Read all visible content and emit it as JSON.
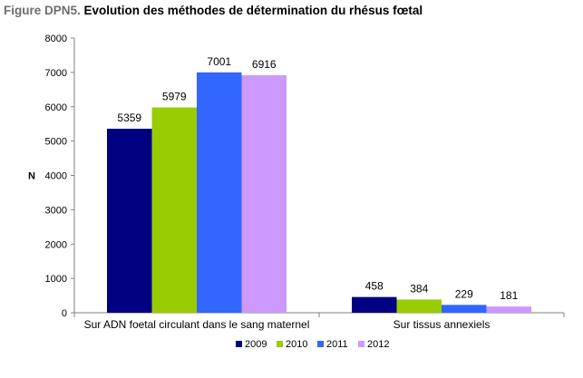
{
  "figure": {
    "prefix": "Figure DPN5.",
    "title": "Evolution des méthodes de détermination du rhésus fœtal"
  },
  "chart_data": {
    "type": "bar",
    "title": "Evolution des méthodes de détermination du rhésus fœtal",
    "xlabel": "",
    "ylabel": "N",
    "ylim": [
      0,
      8000
    ],
    "yticks": [
      0,
      1000,
      2000,
      3000,
      4000,
      5000,
      6000,
      7000,
      8000
    ],
    "grid": false,
    "legend_position": "bottom",
    "categories": [
      "Sur ADN foetal circulant dans le sang maternel",
      "Sur tissus annexiels"
    ],
    "series": [
      {
        "name": "2009",
        "color": "#000080",
        "values": [
          5359,
          458
        ]
      },
      {
        "name": "2010",
        "color": "#99cc00",
        "values": [
          5979,
          384
        ]
      },
      {
        "name": "2011",
        "color": "#3366ff",
        "values": [
          7001,
          229
        ]
      },
      {
        "name": "2012",
        "color": "#cc99ff",
        "values": [
          6916,
          181
        ]
      }
    ]
  }
}
